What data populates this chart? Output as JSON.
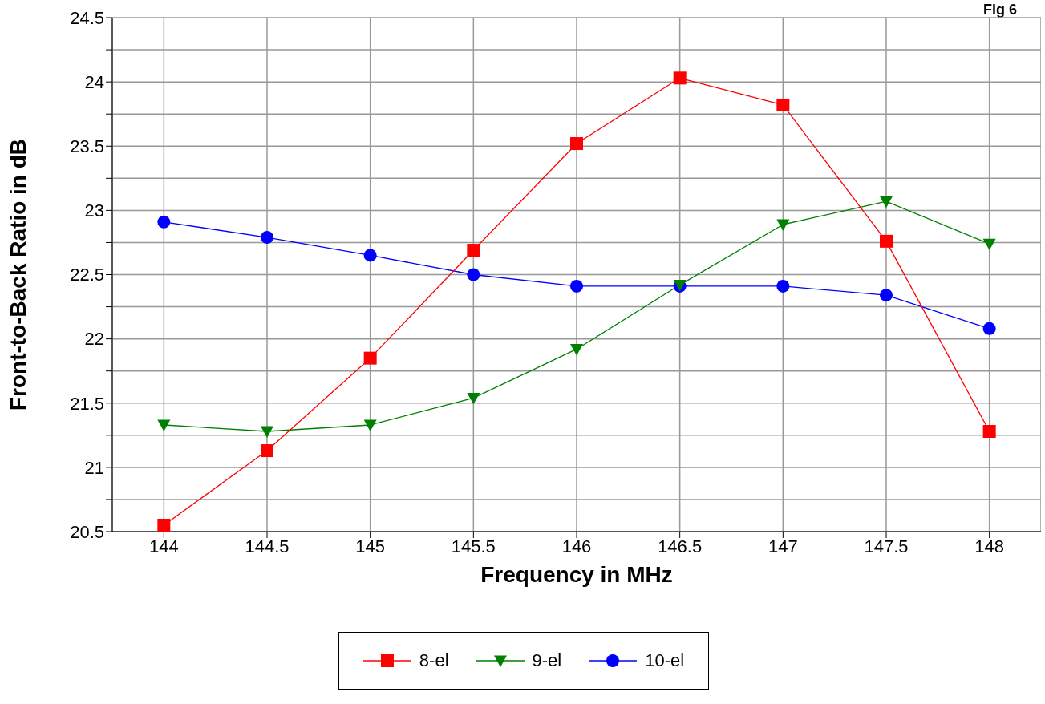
{
  "chart_data": {
    "type": "line",
    "xlabel": "Frequency in MHz",
    "ylabel": "Front-to-Back Ratio in dB",
    "annotations": [
      "Fig 6"
    ],
    "x": [
      144,
      144.5,
      145,
      145.5,
      146,
      146.5,
      147,
      147.5,
      148
    ],
    "xlim": [
      143.75,
      148.25
    ],
    "xticks": [
      144,
      144.5,
      145,
      145.5,
      146,
      146.5,
      147,
      147.5,
      148
    ],
    "ylim": [
      20.5,
      24.5
    ],
    "yticks": [
      20.5,
      {
        "value": 20.75,
        "label": null
      },
      21,
      {
        "value": 21.25,
        "label": null
      },
      21.5,
      {
        "value": 21.75,
        "label": null
      },
      22,
      {
        "value": 22.25,
        "label": null
      },
      22.5,
      {
        "value": 22.75,
        "label": null
      },
      23,
      {
        "value": 23.25,
        "label": null
      },
      23.5,
      {
        "value": 23.75,
        "label": null
      },
      24,
      {
        "value": 24.25,
        "label": null
      },
      24.5
    ],
    "grid": true,
    "legend": "bottom",
    "line_style": "solid",
    "series": [
      {
        "name": "8-el",
        "color": "#ff0000",
        "marker": "square",
        "values": [
          20.55,
          21.13,
          21.85,
          22.69,
          23.52,
          24.03,
          23.82,
          22.76,
          21.28
        ]
      },
      {
        "name": "9-el",
        "color": "#008000",
        "marker": "triangle",
        "values": [
          21.33,
          21.28,
          21.33,
          21.54,
          21.92,
          22.42,
          22.89,
          23.07,
          22.74
        ]
      },
      {
        "name": "10-el",
        "color": "#0000ff",
        "marker": "circle",
        "values": [
          22.91,
          22.79,
          22.65,
          22.5,
          22.41,
          22.41,
          22.41,
          22.34,
          22.08
        ]
      }
    ]
  }
}
